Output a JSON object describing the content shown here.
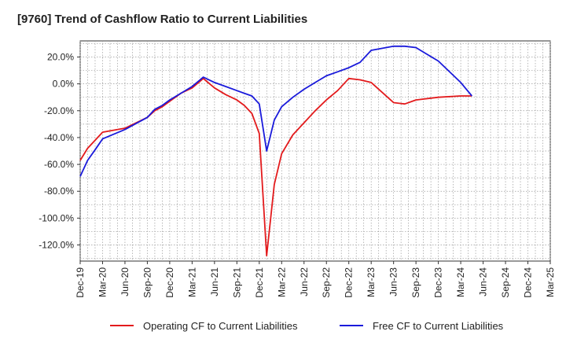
{
  "chart_data": {
    "type": "line",
    "title": "[9760]  Trend of Cashflow Ratio to Current Liabilities",
    "xlabel": "",
    "ylabel": "",
    "ylim": [
      -132,
      32
    ],
    "y_ticks": [
      "20.0%",
      "0.0%",
      "-20.0%",
      "-40.0%",
      "-60.0%",
      "-80.0%",
      "-100.0%",
      "-120.0%"
    ],
    "y_tick_values": [
      20,
      0,
      -20,
      -40,
      -60,
      -80,
      -100,
      -120
    ],
    "x_ticks": [
      "Dec-19",
      "Mar-20",
      "Jun-20",
      "Sep-20",
      "Dec-20",
      "Mar-21",
      "Jun-21",
      "Sep-21",
      "Dec-21",
      "Mar-22",
      "Jun-22",
      "Sep-22",
      "Dec-22",
      "Mar-23",
      "Jun-23",
      "Sep-23",
      "Dec-23",
      "Mar-24",
      "Jun-24",
      "Sep-24",
      "Dec-24",
      "Mar-25"
    ],
    "grid": true,
    "legend_position": "bottom",
    "series": [
      {
        "name": "Operating CF to Current Liabilities",
        "color": "#e31a1c",
        "x": [
          0,
          0.33,
          0.67,
          1,
          2,
          3,
          3.33,
          3.67,
          4,
          4.5,
          5,
          5.5,
          6,
          6.5,
          7,
          7.33,
          7.67,
          8,
          8.33,
          8.67,
          9,
          9.5,
          10,
          10.5,
          11,
          11.5,
          12,
          12.5,
          13,
          14,
          14.5,
          15,
          16,
          17,
          17.5
        ],
        "values": [
          -57,
          -48,
          -42,
          -36,
          -33,
          -25,
          -20,
          -17,
          -13,
          -7,
          -3,
          4,
          -3,
          -8,
          -12,
          -16,
          -22,
          -37,
          -128,
          -75,
          -52,
          -38,
          -29,
          -20,
          -12,
          -5,
          4,
          3,
          1,
          -14,
          -15,
          -12,
          -10,
          -9,
          -9
        ]
      },
      {
        "name": "Free CF to Current Liabilities",
        "color": "#1a1adb",
        "x": [
          0,
          0.33,
          0.67,
          1,
          2,
          3,
          3.33,
          3.67,
          4,
          4.5,
          5,
          5.5,
          6,
          6.5,
          7,
          7.33,
          7.67,
          8,
          8.33,
          8.67,
          9,
          9.5,
          10,
          10.5,
          11,
          11.5,
          12,
          12.5,
          13,
          14,
          14.5,
          15,
          15.5,
          16,
          17,
          17.5
        ],
        "values": [
          -69,
          -57,
          -49,
          -41,
          -34,
          -25,
          -19,
          -16,
          -12,
          -7,
          -2,
          5,
          1,
          -2,
          -5,
          -7,
          -9,
          -15,
          -50,
          -27,
          -17,
          -10,
          -4,
          1,
          6,
          9,
          12,
          16,
          25,
          28,
          28,
          27,
          22,
          17,
          1,
          -9
        ]
      }
    ]
  }
}
